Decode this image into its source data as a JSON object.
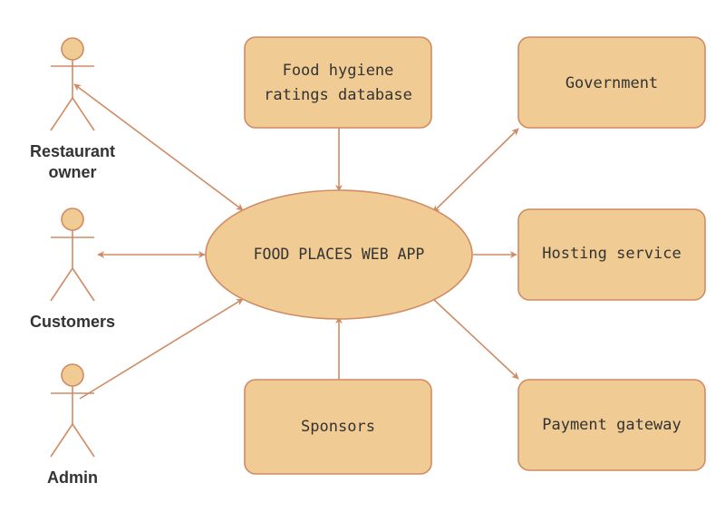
{
  "colors": {
    "fill": "#f0cb93",
    "stroke": "#d08b64",
    "text": "#333333",
    "background": "#ffffff"
  },
  "center": {
    "label": "FOOD PLACES WEB APP"
  },
  "boxes": [
    {
      "id": "hygiene",
      "lines": [
        "Food hygiene",
        "ratings database"
      ]
    },
    {
      "id": "government",
      "lines": [
        "Government"
      ]
    },
    {
      "id": "hosting",
      "lines": [
        "Hosting service"
      ]
    },
    {
      "id": "payment",
      "lines": [
        "Payment gateway"
      ]
    },
    {
      "id": "sponsors",
      "lines": [
        "Sponsors"
      ]
    }
  ],
  "actors": [
    {
      "id": "restaurant",
      "lines": [
        "Restaurant",
        "owner"
      ]
    },
    {
      "id": "customers",
      "lines": [
        "Customers"
      ]
    },
    {
      "id": "admin",
      "lines": [
        "Admin"
      ]
    }
  ]
}
